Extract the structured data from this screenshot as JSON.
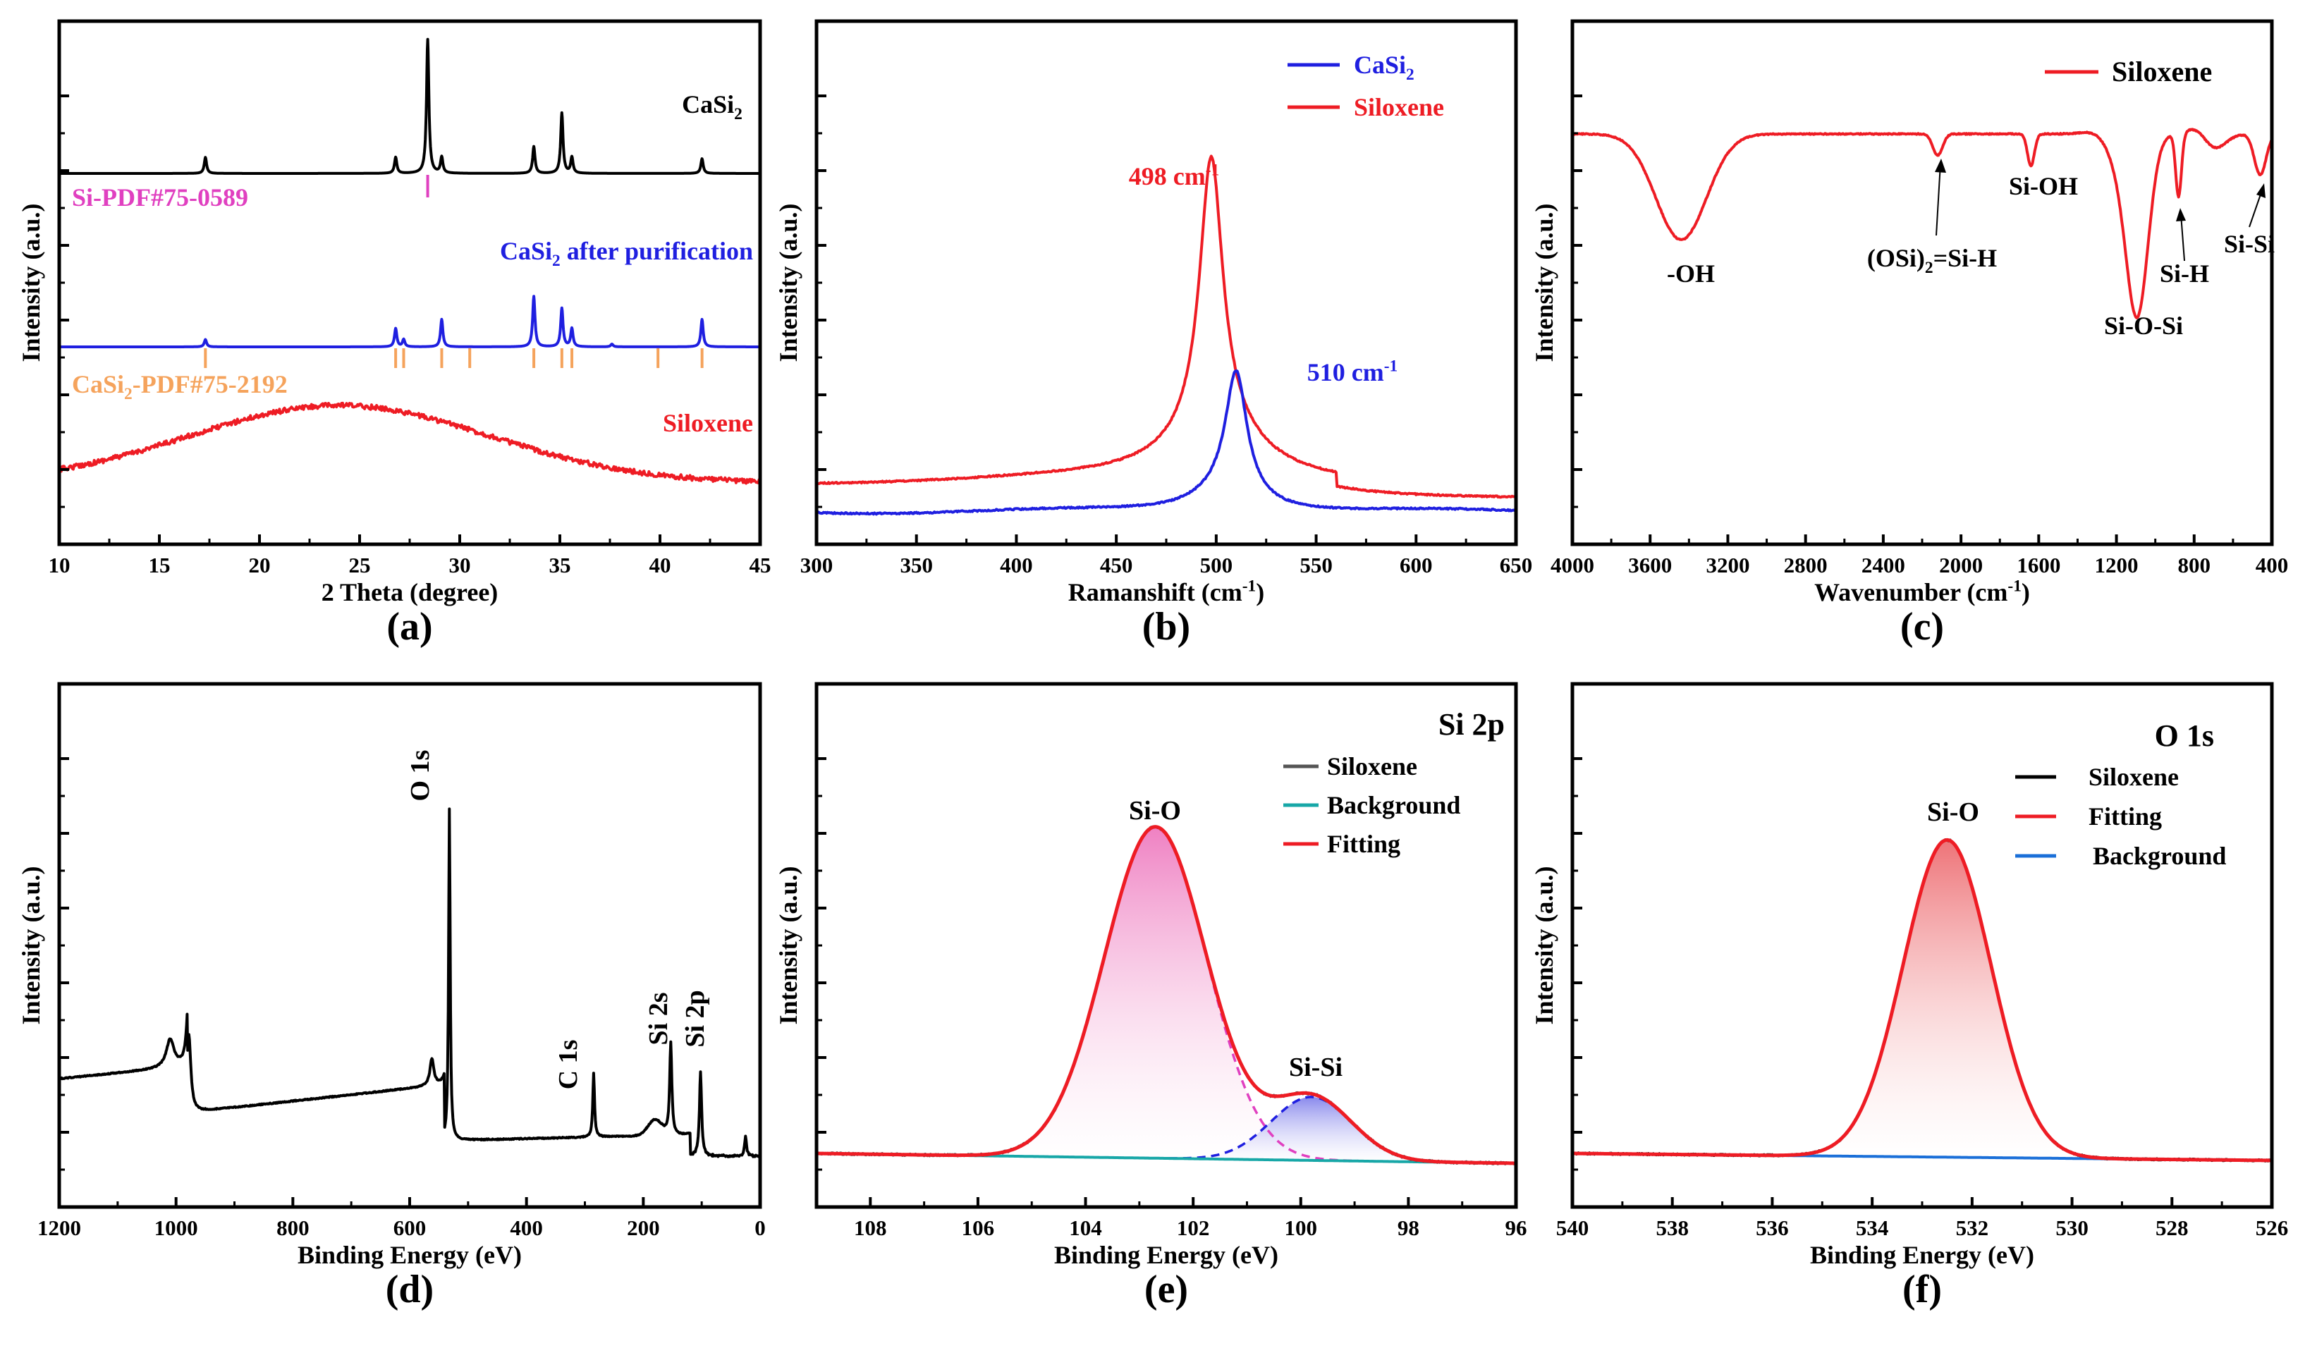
{
  "figure": {
    "panels": [
      "a",
      "b",
      "c",
      "d",
      "e",
      "f"
    ]
  },
  "colors": {
    "black": "#000000",
    "blue": "#1f1fe0",
    "red": "#ee1c24",
    "pink": "#e040c0",
    "orange": "#f5a35c",
    "teal": "#17a7a7",
    "gray": "#555555",
    "lineblue": "#1a6fd8"
  },
  "chart_data": [
    {
      "id": "a",
      "type": "line",
      "panel_label": "(a)",
      "xlabel": "2 Theta (degree)",
      "ylabel": "Intensity (a.u.)",
      "xlim": [
        10,
        45
      ],
      "xticks": [
        10,
        15,
        20,
        25,
        30,
        35,
        40,
        45
      ],
      "series": [
        {
          "name": "CaSi₂",
          "label_main": "CaSi",
          "label_sub": "2",
          "peaks": [
            [
              17.3,
              0.12
            ],
            [
              26.8,
              0.12
            ],
            [
              28.4,
              1.0
            ],
            [
              29.1,
              0.12
            ],
            [
              33.7,
              0.2
            ],
            [
              35.1,
              0.45
            ],
            [
              35.6,
              0.12
            ],
            [
              42.1,
              0.11
            ]
          ]
        },
        {
          "name": "CaSi₂ after purification",
          "label_main": "CaSi",
          "label_sub": "2",
          "label_rest": " after purification",
          "peaks": [
            [
              17.3,
              0.08
            ],
            [
              26.8,
              0.2
            ],
            [
              27.2,
              0.08
            ],
            [
              29.1,
              0.3
            ],
            [
              33.7,
              0.55
            ],
            [
              35.1,
              0.42
            ],
            [
              35.6,
              0.2
            ],
            [
              37.6,
              0.03
            ],
            [
              42.1,
              0.3
            ]
          ]
        },
        {
          "name": "Siloxene",
          "shape": "broad hump",
          "center": 24,
          "width": 7.5
        }
      ],
      "reference_patterns": [
        {
          "name": "Si-PDF#75-0589",
          "positions": [
            28.4
          ]
        },
        {
          "name": "CaSi₂-PDF#75-2192",
          "label_main": "CaSi",
          "label_sub": "2",
          "label_rest": "-PDF#75-2192",
          "positions": [
            17.3,
            26.8,
            27.2,
            29.1,
            30.5,
            33.7,
            35.1,
            35.6,
            39.9,
            42.1
          ]
        }
      ]
    },
    {
      "id": "b",
      "type": "line",
      "panel_label": "(b)",
      "xlabel": "Ramanshift (cm⁻¹)",
      "xlabel_main": "Ramanshift (cm",
      "xlabel_sup": "-1",
      "xlabel_end": ")",
      "ylabel": "Intensity (a.u.)",
      "xlim": [
        300,
        650
      ],
      "xticks": [
        300,
        350,
        400,
        450,
        500,
        550,
        600,
        650
      ],
      "series": [
        {
          "name": "CaSi₂",
          "label_main": "CaSi",
          "label_sub": "2",
          "peak": 510,
          "relative_height": 0.28
        },
        {
          "name": "Siloxene",
          "peak": 498,
          "relative_height": 0.72
        }
      ],
      "annotations": [
        {
          "text": "498 cm⁻¹",
          "main": "498 cm",
          "sup": "-1"
        },
        {
          "text": "510 cm⁻¹",
          "main": "510 cm",
          "sup": "-1"
        }
      ]
    },
    {
      "id": "c",
      "type": "line",
      "panel_label": "(c)",
      "xlabel": "Wavenumber (cm⁻¹)",
      "xlabel_main": "Wavenumber (cm",
      "xlabel_sup": "-1",
      "xlabel_end": ")",
      "ylabel": "Intensity (a.u.)",
      "xlim": [
        4000,
        400
      ],
      "xticks": [
        4000,
        3600,
        3200,
        2800,
        2400,
        2000,
        1600,
        1200,
        800,
        400
      ],
      "series": [
        {
          "name": "Siloxene"
        }
      ],
      "bands": [
        {
          "label": "-OH",
          "position": 3440
        },
        {
          "label": "(OSi)₂=Si-H",
          "main": "(OSi)",
          "sub": "2",
          "rest": "=Si-H",
          "position": 2120
        },
        {
          "label": "Si-OH",
          "position": 1640
        },
        {
          "label": "Si-O-Si",
          "position": 1060
        },
        {
          "label": "Si-H",
          "position": 880
        },
        {
          "label": "Si-Si",
          "position": 460
        }
      ]
    },
    {
      "id": "d",
      "type": "line",
      "panel_label": "(d)",
      "xlabel": "Binding Energy (eV)",
      "ylabel": "Intensity (a.u.)",
      "xlim": [
        1200,
        0
      ],
      "xticks": [
        1200,
        1000,
        800,
        600,
        400,
        200,
        0
      ],
      "peaks": [
        {
          "label": "O 1s",
          "position": 532
        },
        {
          "label": "C 1s",
          "position": 285
        },
        {
          "label": "Si 2s",
          "position": 153
        },
        {
          "label": "Si 2p",
          "position": 102
        }
      ]
    },
    {
      "id": "e",
      "type": "area",
      "panel_label": "(e)",
      "title": "Si 2p",
      "xlabel": "Binding Energy (eV)",
      "ylabel": "Intensity (a.u.)",
      "xlim": [
        109,
        96
      ],
      "xticks": [
        108,
        106,
        104,
        102,
        100,
        98,
        96
      ],
      "legend": [
        "Siloxene",
        "Background",
        "Fitting"
      ],
      "components": [
        {
          "label": "Si-O",
          "center": 102.7,
          "relative_height": 1.0
        },
        {
          "label": "Si-Si",
          "center": 99.8,
          "relative_height": 0.2
        }
      ]
    },
    {
      "id": "f",
      "type": "area",
      "panel_label": "(f)",
      "title": "O 1s",
      "xlabel": "Binding Energy (eV)",
      "ylabel": "Intensity (a.u.)",
      "xlim": [
        540,
        526
      ],
      "xticks": [
        540,
        538,
        536,
        534,
        532,
        530,
        528,
        526
      ],
      "legend": [
        "Siloxene",
        "Fitting",
        "Background"
      ],
      "components": [
        {
          "label": "Si-O",
          "center": 532.5,
          "relative_height": 1.0
        }
      ]
    }
  ]
}
